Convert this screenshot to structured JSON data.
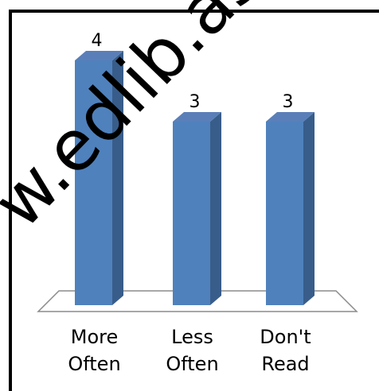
{
  "chart_data": {
    "type": "bar",
    "categories": [
      [
        "More",
        "Often"
      ],
      [
        "Less",
        "Often"
      ],
      [
        "Don't",
        "Read"
      ]
    ],
    "values": [
      4,
      3,
      3
    ],
    "title": "",
    "xlabel": "",
    "ylabel": "",
    "ylim": [
      0,
      4
    ],
    "grid": false,
    "bar_color": "#4F81BD",
    "bar_side_color": "#385D8A",
    "bar_top_color": "#5A7FB8"
  },
  "watermark": "w.edlib.asc"
}
